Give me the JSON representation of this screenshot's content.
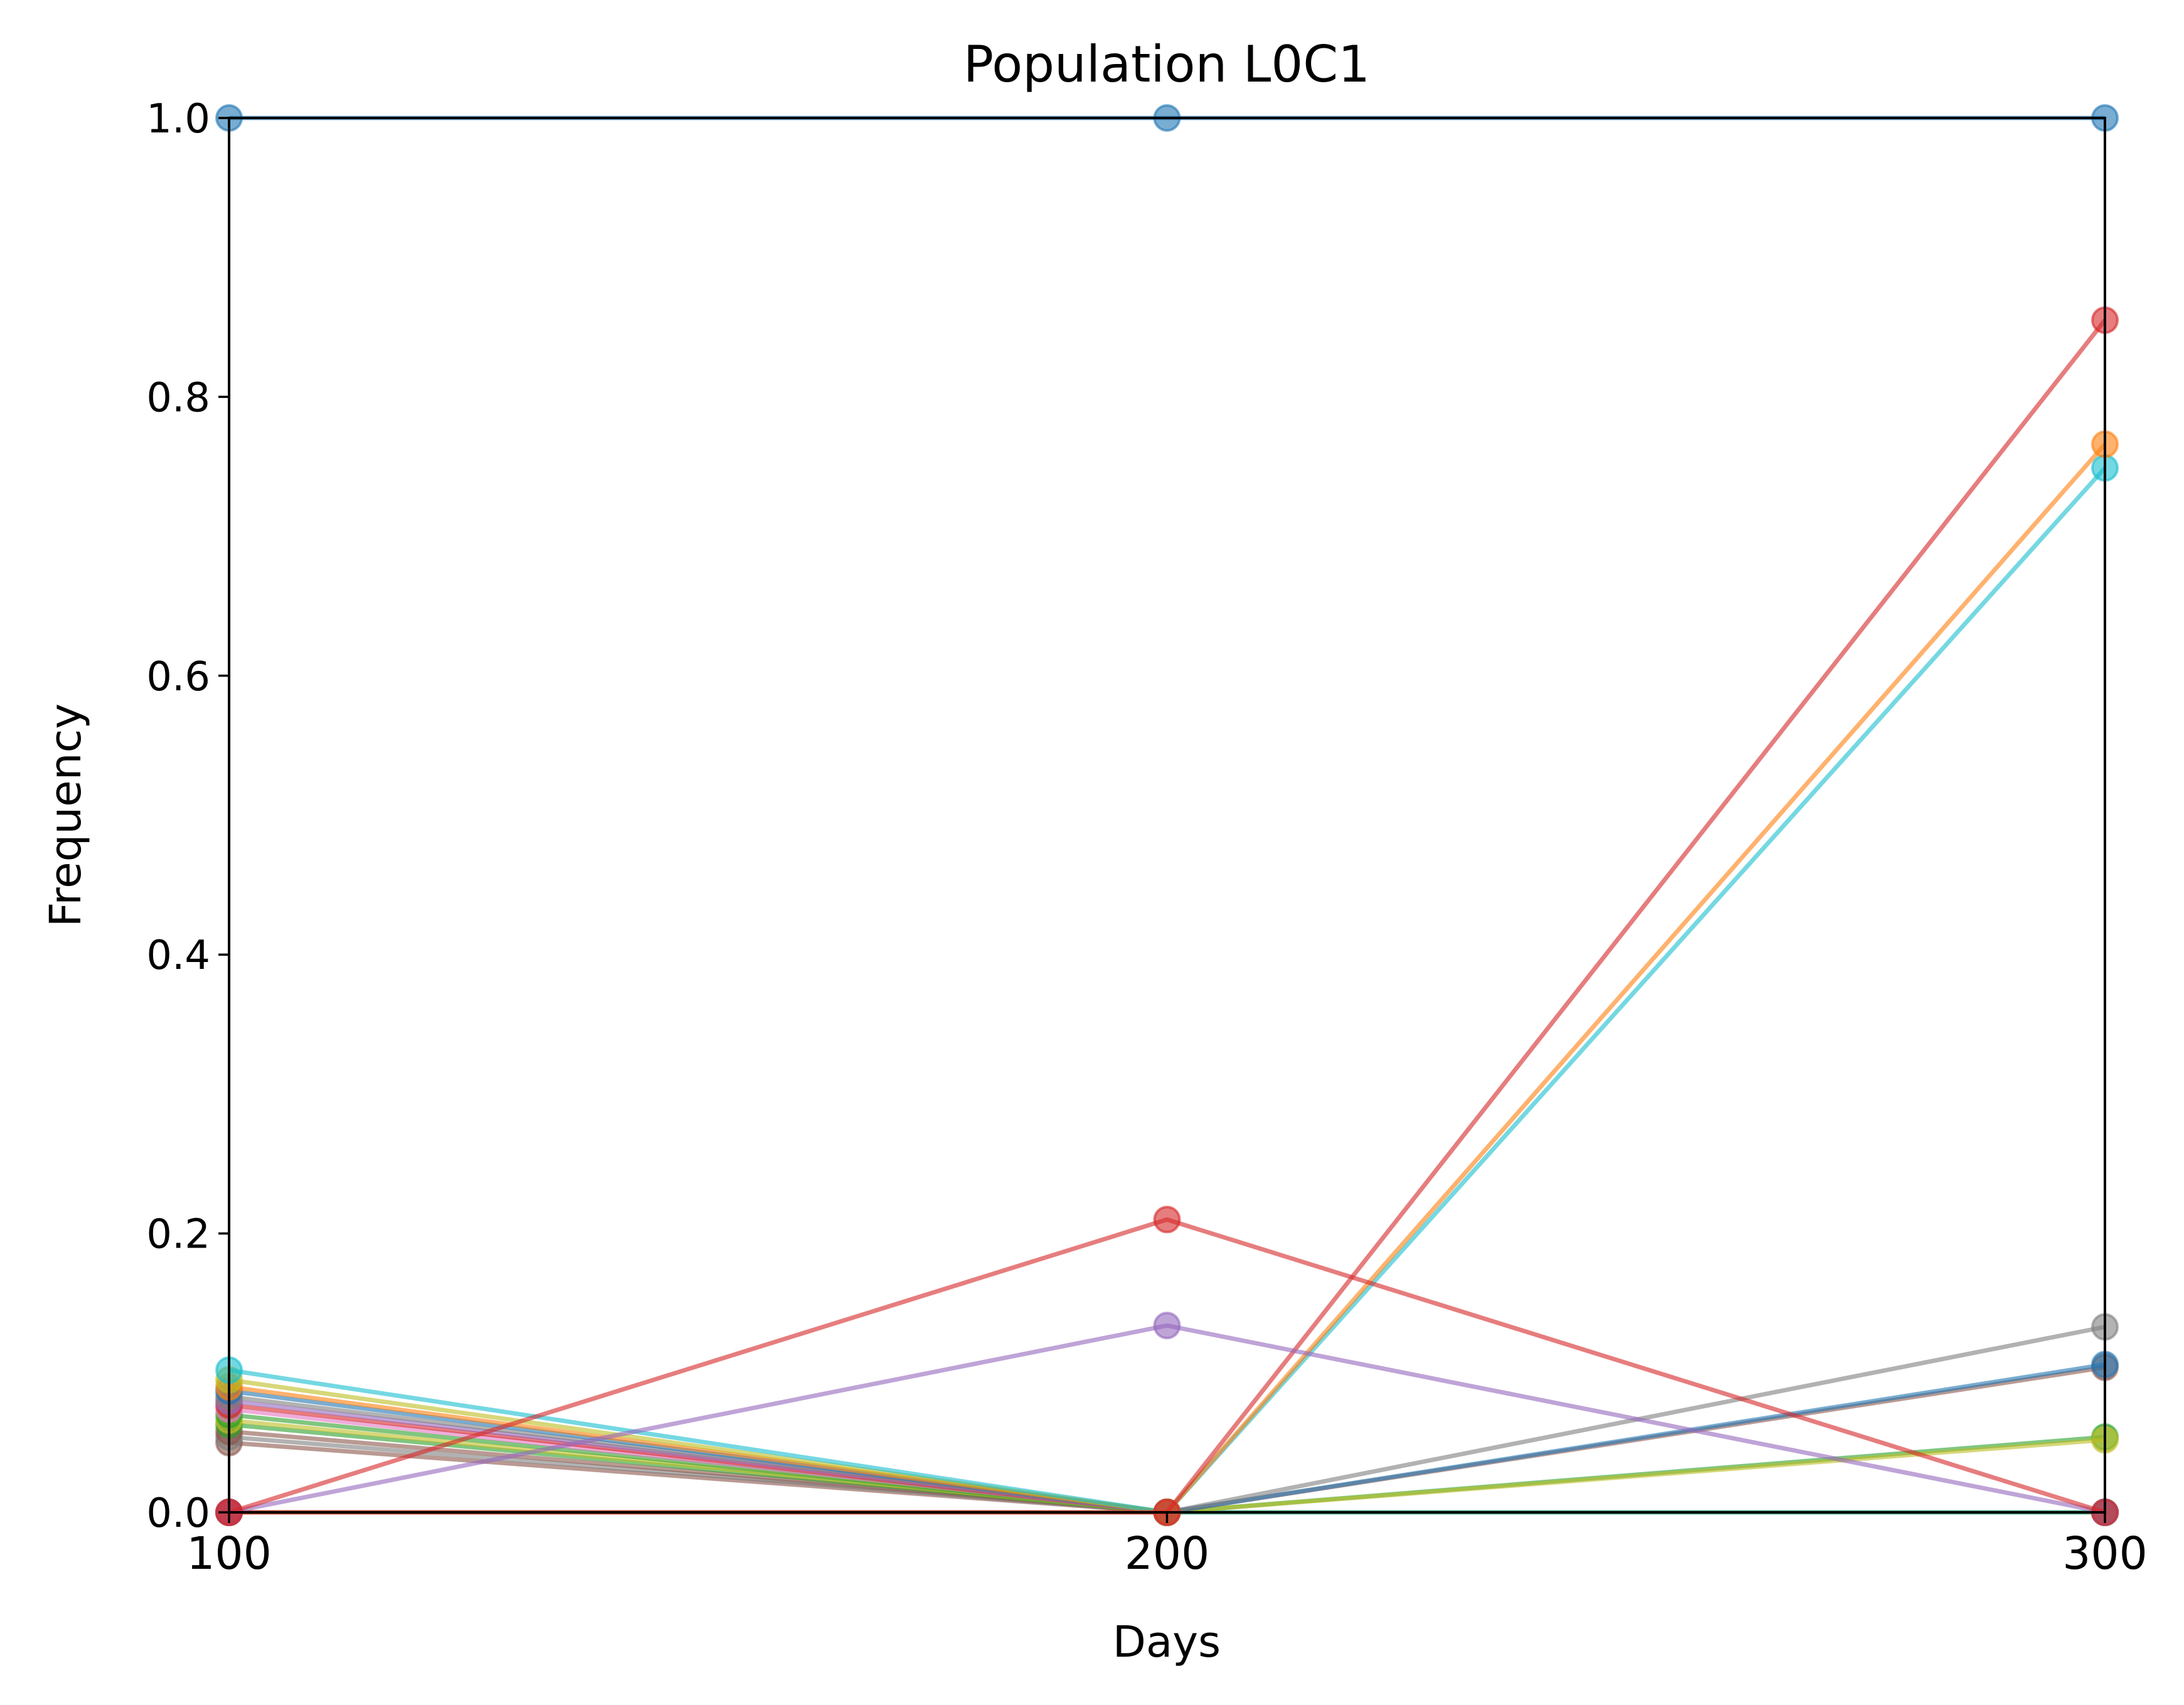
{
  "chart_data": {
    "type": "line",
    "title": "Population L0C1",
    "xlabel": "Days",
    "ylabel": "Frequency",
    "xlim": [
      100,
      300
    ],
    "ylim": [
      0.0,
      1.0
    ],
    "x": [
      100,
      200,
      300
    ],
    "x_tick_labels": [
      "100",
      "200",
      "300"
    ],
    "y_ticks": [
      0.0,
      0.2,
      0.4,
      0.6,
      0.8,
      1.0
    ],
    "y_tick_labels": [
      "0.0",
      "0.2",
      "0.4",
      "0.6",
      "0.8",
      "1.0"
    ],
    "grid": false,
    "legend": "none",
    "series": [
      {
        "color": "#1f77b4",
        "values": [
          1.0,
          1.0,
          1.0
        ]
      },
      {
        "color": "#d62728",
        "values": [
          0.0,
          0.21,
          0.0
        ]
      },
      {
        "color": "#9467bd",
        "values": [
          0.0,
          0.134,
          0.0
        ]
      },
      {
        "color": "#d62728",
        "values": [
          0.0,
          0.0,
          0.855
        ]
      },
      {
        "color": "#ff7f0e",
        "values": [
          0.0,
          0.0,
          0.766
        ]
      },
      {
        "color": "#17becf",
        "values": [
          0.0,
          0.0,
          0.749
        ]
      },
      {
        "color": "#7f7f7f",
        "values": [
          0.0,
          0.0,
          0.133
        ]
      },
      {
        "color": "#1f77b4",
        "values": [
          0.0,
          0.0,
          0.106
        ]
      },
      {
        "color": "#8c564b",
        "values": [
          0.0,
          0.0,
          0.104
        ]
      },
      {
        "color": "#bcbd22",
        "values": [
          0.0,
          0.0,
          0.052
        ]
      },
      {
        "color": "#2ca02c",
        "values": [
          0.0,
          0.0,
          0.054
        ]
      },
      {
        "color": "#17becf",
        "values": [
          0.102,
          0.0,
          0.0
        ]
      },
      {
        "color": "#bcbd22",
        "values": [
          0.095,
          0.0,
          0.0
        ]
      },
      {
        "color": "#ff7f0e",
        "values": [
          0.09,
          0.0,
          0.0
        ]
      },
      {
        "color": "#1f77b4",
        "values": [
          0.087,
          0.0,
          0.0
        ]
      },
      {
        "color": "#7f7f7f",
        "values": [
          0.083,
          0.0,
          0.0
        ]
      },
      {
        "color": "#9467bd",
        "values": [
          0.08,
          0.0,
          0.0
        ]
      },
      {
        "color": "#d62728",
        "values": [
          0.077,
          0.0,
          0.0
        ]
      },
      {
        "color": "#e377c2",
        "values": [
          0.074,
          0.0,
          0.0
        ]
      },
      {
        "color": "#2ca02c",
        "values": [
          0.07,
          0.0,
          0.0
        ]
      },
      {
        "color": "#bcbd22",
        "values": [
          0.066,
          0.0,
          0.0
        ]
      },
      {
        "color": "#2ca02c",
        "values": [
          0.063,
          0.0,
          0.0
        ]
      },
      {
        "color": "#8c564b",
        "values": [
          0.058,
          0.0,
          0.0
        ]
      },
      {
        "color": "#7f7f7f",
        "values": [
          0.054,
          0.0,
          0.0
        ]
      },
      {
        "color": "#8c564b",
        "values": [
          0.05,
          0.0,
          0.0
        ]
      },
      {
        "color": "#8c564b",
        "values": [
          0.0,
          0.0,
          0.0
        ]
      },
      {
        "color": "#9467bd",
        "values": [
          0.0,
          0.0,
          0.0
        ]
      }
    ]
  }
}
